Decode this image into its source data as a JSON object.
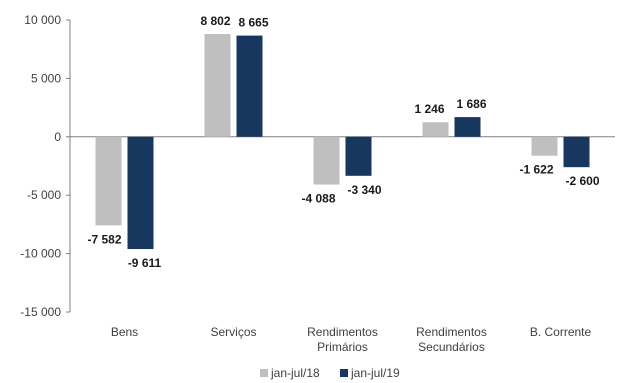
{
  "chart_data": {
    "type": "bar",
    "categories": [
      [
        "Bens"
      ],
      [
        "Serviços"
      ],
      [
        "Rendimentos",
        "Primários"
      ],
      [
        "Rendimentos",
        "Secundários"
      ],
      [
        "B. Corrente"
      ]
    ],
    "series": [
      {
        "name": "jan-jul/18",
        "color": "#bfbfbf",
        "values": [
          -7582,
          8802,
          -4088,
          1246,
          -1622
        ],
        "labels": [
          "-7 582",
          "8 802",
          "-4 088",
          "1 246",
          "-1 622"
        ]
      },
      {
        "name": "jan-jul/19",
        "color": "#17375e",
        "values": [
          -9611,
          8665,
          -3340,
          1686,
          -2600
        ],
        "labels": [
          "-9 611",
          "8 665",
          "-3 340",
          "1 686",
          "-2 600"
        ]
      }
    ],
    "y_ticks": [
      {
        "value": 10000,
        "label": "10 000"
      },
      {
        "value": 5000,
        "label": "5 000"
      },
      {
        "value": 0,
        "label": "0"
      },
      {
        "value": -5000,
        "label": "-5 000"
      },
      {
        "value": -10000,
        "label": "-10 000"
      },
      {
        "value": -15000,
        "label": "-15 000"
      }
    ],
    "ylim": [
      -15000,
      10000
    ],
    "grid": false,
    "legend_position": "bottom"
  }
}
